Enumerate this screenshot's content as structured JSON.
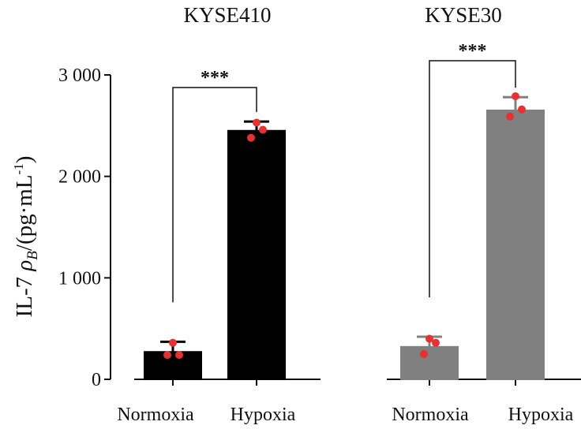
{
  "chart_data": {
    "type": "bar",
    "ylabel": {
      "prefix": "IL-7 ",
      "symbol": "ρ",
      "subscript": "B",
      "unit_open": "/(pg·mL",
      "superscript": "-1",
      "unit_close": ")"
    },
    "ylim": [
      0,
      3000
    ],
    "yticks": [
      {
        "value": 0,
        "label": "0"
      },
      {
        "value": 1000,
        "label": "1 000"
      },
      {
        "value": 2000,
        "label": "2 000"
      },
      {
        "value": 3000,
        "label": "3 000"
      }
    ],
    "colors": {
      "KYSE410": "#000000",
      "KYSE30": "#808080",
      "points": "#e8302e"
    },
    "groups": [
      {
        "title": "KYSE410",
        "significance": "***",
        "bars": [
          {
            "category": "Normoxia",
            "value": 270,
            "error": 100,
            "points": [
              360,
              240,
              240
            ]
          },
          {
            "category": "Hypoxia",
            "value": 2450,
            "error": 90,
            "points": [
              2530,
              2460,
              2380
            ]
          }
        ]
      },
      {
        "title": "KYSE30",
        "significance": "***",
        "bars": [
          {
            "category": "Normoxia",
            "value": 320,
            "error": 100,
            "points": [
              400,
              360,
              250
            ]
          },
          {
            "category": "Hypoxia",
            "value": 2650,
            "error": 130,
            "points": [
              2790,
              2660,
              2590
            ]
          }
        ]
      }
    ]
  }
}
